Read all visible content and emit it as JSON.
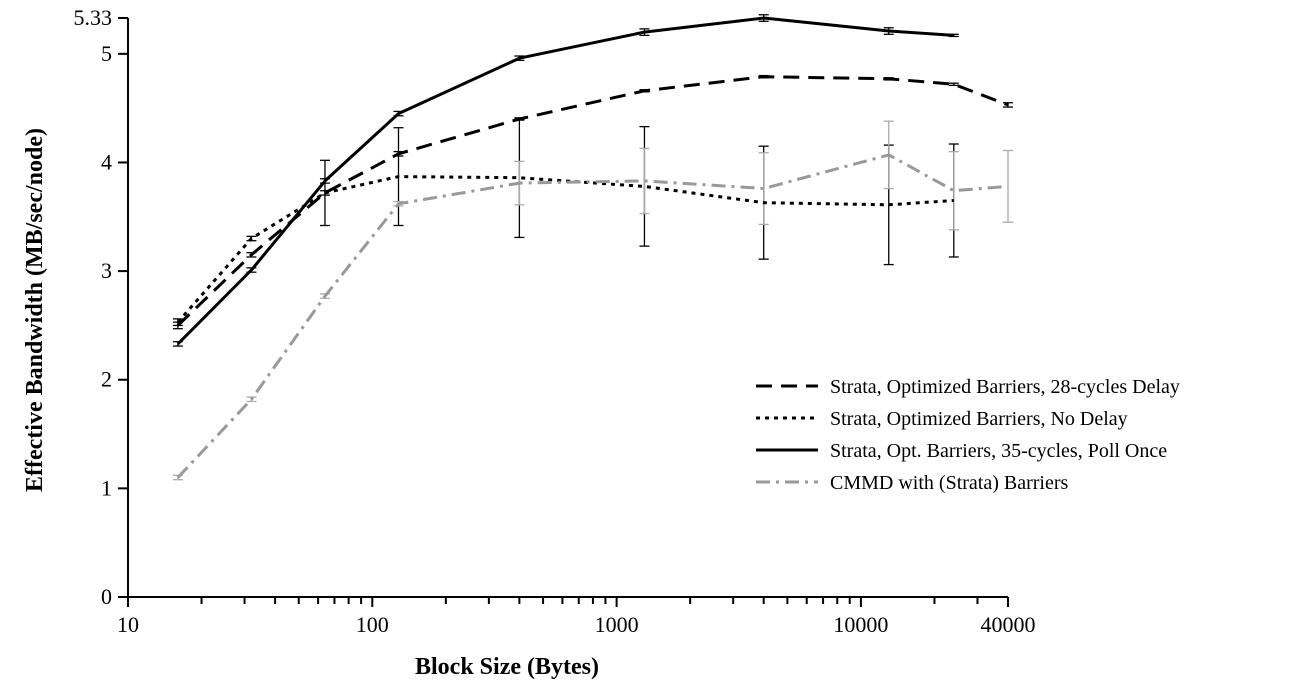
{
  "chart_data": {
    "type": "line",
    "title": "",
    "xlabel": "Block Size (Bytes)",
    "ylabel": "Effective Bandwidth (MB/sec/node)",
    "xscale": "log",
    "xlim": [
      10,
      40000
    ],
    "ylim": [
      0,
      5.33
    ],
    "x_tick_labels": [
      {
        "value": 10,
        "label": "10"
      },
      {
        "value": 100,
        "label": "100"
      },
      {
        "value": 1000,
        "label": "1000"
      },
      {
        "value": 10000,
        "label": "10000"
      },
      {
        "value": 40000,
        "label": "40000"
      }
    ],
    "y_tick_labels": [
      {
        "value": 0,
        "label": "0"
      },
      {
        "value": 1,
        "label": "1"
      },
      {
        "value": 2,
        "label": "2"
      },
      {
        "value": 3,
        "label": "3"
      },
      {
        "value": 4,
        "label": "4"
      },
      {
        "value": 5,
        "label": "5"
      },
      {
        "value": 5.33,
        "label": "5.33"
      }
    ],
    "grid": false,
    "legend_position": "right",
    "series": [
      {
        "name": "Strata, Optimized Barriers, 28-cycles Delay",
        "color": "#000000",
        "dash": "dashed",
        "points": [
          {
            "x": 16,
            "y": 2.5,
            "err": 0.03
          },
          {
            "x": 32,
            "y": 3.15,
            "err": 0.02
          },
          {
            "x": 64,
            "y": 3.72,
            "err": 0.02
          },
          {
            "x": 128,
            "y": 4.08,
            "err": 0.02
          },
          {
            "x": 400,
            "y": 4.4,
            "err": 0.01
          },
          {
            "x": 1300,
            "y": 4.66,
            "err": 0.01
          },
          {
            "x": 4000,
            "y": 4.79,
            "err": 0.01
          },
          {
            "x": 13000,
            "y": 4.77,
            "err": 0.01
          },
          {
            "x": 24000,
            "y": 4.72,
            "err": 0.01
          },
          {
            "x": 40000,
            "y": 4.53,
            "err": 0.02
          }
        ]
      },
      {
        "name": "Strata, Optimized Barriers, No Delay",
        "color": "#000000",
        "dash": "dotted",
        "points": [
          {
            "x": 16,
            "y": 2.53,
            "err": 0.03
          },
          {
            "x": 32,
            "y": 3.3,
            "err": 0.02
          },
          {
            "x": 64,
            "y": 3.72,
            "err": 0.3
          },
          {
            "x": 128,
            "y": 3.87,
            "err": 0.45
          },
          {
            "x": 400,
            "y": 3.86,
            "err": 0.55
          },
          {
            "x": 1300,
            "y": 3.78,
            "err": 0.55
          },
          {
            "x": 4000,
            "y": 3.63,
            "err": 0.52
          },
          {
            "x": 13000,
            "y": 3.61,
            "err": 0.55
          },
          {
            "x": 24000,
            "y": 3.65,
            "err": 0.52
          }
        ]
      },
      {
        "name": "Strata, Opt. Barriers, 35-cycles, Poll Once",
        "color": "#000000",
        "dash": "solid",
        "points": [
          {
            "x": 16,
            "y": 2.33,
            "err": 0.02
          },
          {
            "x": 32,
            "y": 3.01,
            "err": 0.02
          },
          {
            "x": 64,
            "y": 3.83,
            "err": 0.02
          },
          {
            "x": 128,
            "y": 4.45,
            "err": 0.02
          },
          {
            "x": 400,
            "y": 4.96,
            "err": 0.02
          },
          {
            "x": 1300,
            "y": 5.2,
            "err": 0.03
          },
          {
            "x": 4000,
            "y": 5.33,
            "err": 0.03
          },
          {
            "x": 13000,
            "y": 5.21,
            "err": 0.03
          },
          {
            "x": 24000,
            "y": 5.17,
            "err": 0.01
          }
        ]
      },
      {
        "name": "CMMD with (Strata) Barriers",
        "color": "#999999",
        "dash": "dashdot",
        "points": [
          {
            "x": 16,
            "y": 1.1,
            "err": 0.02
          },
          {
            "x": 32,
            "y": 1.82,
            "err": 0.02
          },
          {
            "x": 64,
            "y": 2.77,
            "err": 0.02
          },
          {
            "x": 128,
            "y": 3.62,
            "err": 0.02
          },
          {
            "x": 400,
            "y": 3.81,
            "err": 0.2
          },
          {
            "x": 1300,
            "y": 3.83,
            "err": 0.3
          },
          {
            "x": 4000,
            "y": 3.76,
            "err": 0.33
          },
          {
            "x": 13000,
            "y": 4.07,
            "err": 0.31
          },
          {
            "x": 24000,
            "y": 3.74,
            "err": 0.36
          },
          {
            "x": 40000,
            "y": 3.78,
            "err": 0.33
          }
        ]
      }
    ]
  }
}
